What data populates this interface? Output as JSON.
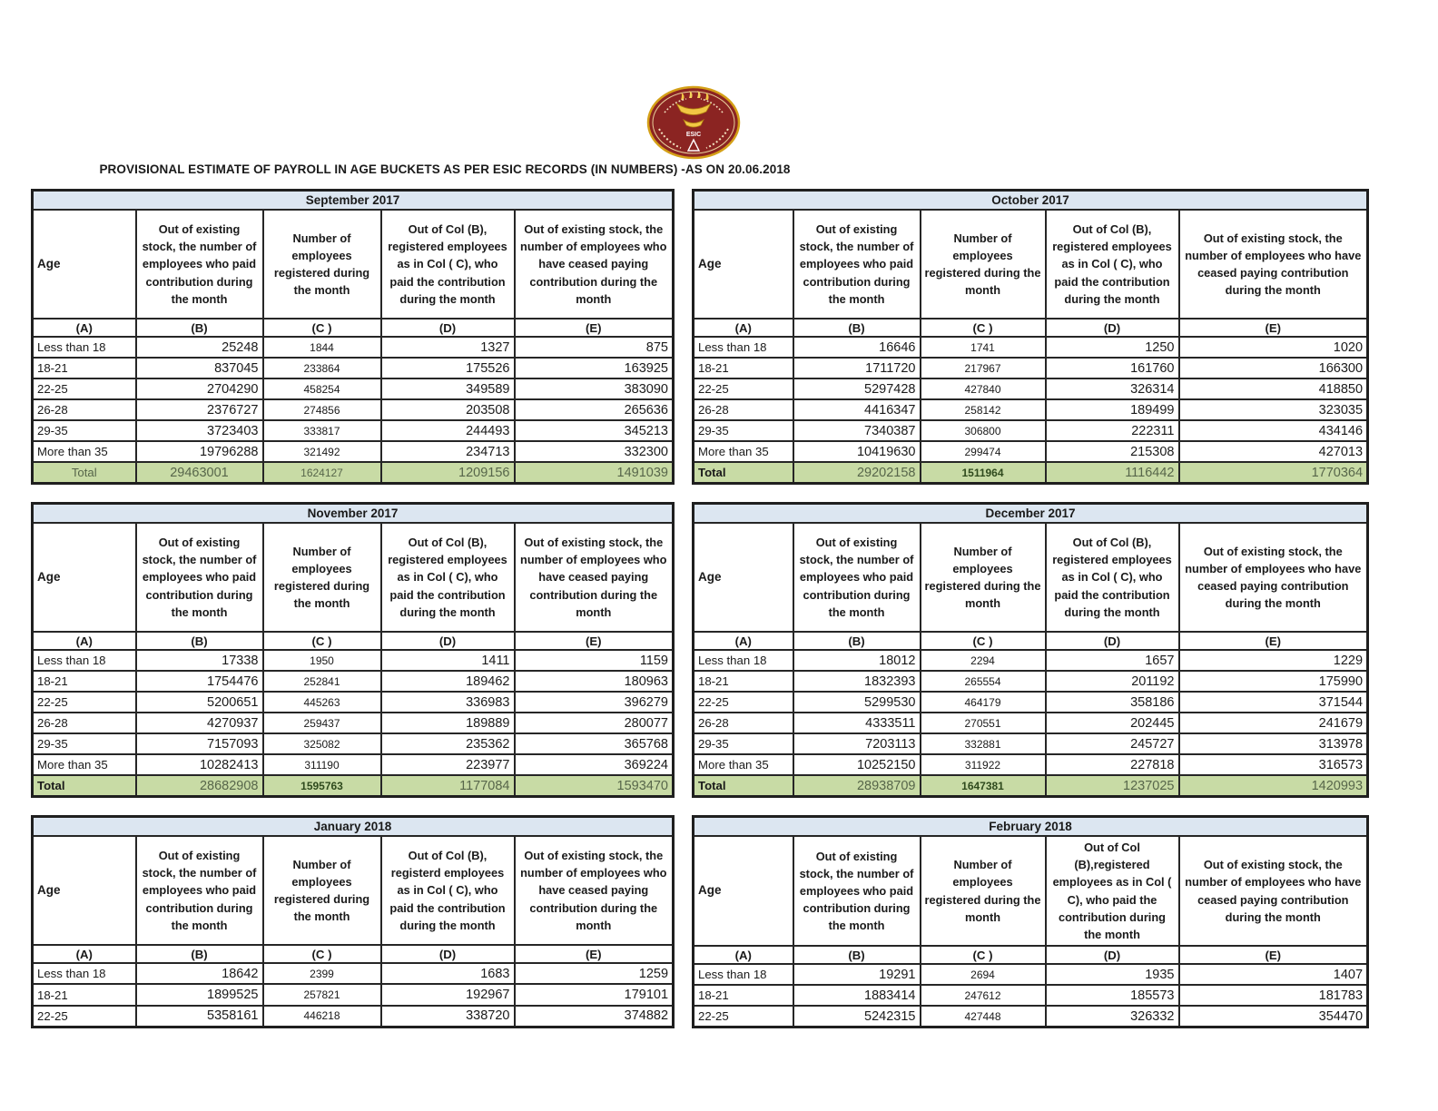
{
  "page": {
    "title": "PROVISIONAL ESTIMATE OF PAYROLL IN AGE BUCKETS AS PER ESIC RECORDS (IN NUMBERS) -AS ON 20.06.2018",
    "logo": "esic-emblem"
  },
  "colors": {
    "month_header_bg": "#dce6f1",
    "total_row_bg": "#c8dba5",
    "emblem_maroon": "#8b2422",
    "emblem_gold": "#d4a017"
  },
  "letters": [
    "(A)",
    "(B)",
    "(C )",
    "(D)",
    "(E)"
  ],
  "tables": [
    {
      "month": "September 2017",
      "headers": {
        "age": "Age",
        "b": "Out of existing stock, the number of employees who paid contribution during the month",
        "c": "Number of employees registered during the month",
        "d": "Out of Col (B), registered employees as in Col ( C), who paid the contribution during the month",
        "e": "Out of existing stock, the number of  employees who have ceased paying contribution during the month"
      },
      "rows": [
        [
          "Less than 18",
          "25248",
          "1844",
          "1327",
          "875"
        ],
        [
          "18-21",
          "837045",
          "233864",
          "175526",
          "163925"
        ],
        [
          "22-25",
          "2704290",
          "458254",
          "349589",
          "383090"
        ],
        [
          "26-28",
          "2376727",
          "274856",
          "203508",
          "265636"
        ],
        [
          "29-35",
          "3723403",
          "333817",
          "244493",
          "345213"
        ],
        [
          "More than 35",
          "19796288",
          "321492",
          "234713",
          "332300"
        ]
      ],
      "total": [
        "Total",
        "29463001",
        "1624127",
        "1209156",
        "1491039"
      ]
    },
    {
      "month": "October 2017",
      "headers": {
        "age": "Age",
        "b": "Out of existing stock, the number of employees who paid contribution during the month",
        "c": "Number of employees registered during the month",
        "d": "Out of Col (B), registered employees as in Col ( C), who paid the contribution during the month",
        "e": "Out of existing stock, the number of  employees  who have ceased paying contribution during the month"
      },
      "rows": [
        [
          "Less than 18",
          "16646",
          "1741",
          "1250",
          "1020"
        ],
        [
          "18-21",
          "1711720",
          "217967",
          "161760",
          "166300"
        ],
        [
          "22-25",
          "5297428",
          "427840",
          "326314",
          "418850"
        ],
        [
          "26-28",
          "4416347",
          "258142",
          "189499",
          "323035"
        ],
        [
          "29-35",
          "7340387",
          "306800",
          "222311",
          "434146"
        ],
        [
          "More than 35",
          "10419630",
          "299474",
          "215308",
          "427013"
        ]
      ],
      "total": [
        "Total",
        "29202158",
        "1511964",
        "1116442",
        "1770364"
      ]
    },
    {
      "month": "November 2017",
      "headers": {
        "age": "Age",
        "b": "Out of existing stock, the number of employees who paid contribution during the month",
        "c": "Number of employees registered during the month",
        "d": "Out of Col (B), registered employees as in Col ( C), who paid the contribution during the month",
        "e": "Out of existing stock, the number of  employees who have ceased paying contribution during the month"
      },
      "rows": [
        [
          "Less than 18",
          "17338",
          "1950",
          "1411",
          "1159"
        ],
        [
          "18-21",
          "1754476",
          "252841",
          "189462",
          "180963"
        ],
        [
          "22-25",
          "5200651",
          "445263",
          "336983",
          "396279"
        ],
        [
          "26-28",
          "4270937",
          "259437",
          "189889",
          "280077"
        ],
        [
          "29-35",
          "7157093",
          "325082",
          "235362",
          "365768"
        ],
        [
          "More than 35",
          "10282413",
          "311190",
          "223977",
          "369224"
        ]
      ],
      "total": [
        "Total",
        "28682908",
        "1595763",
        "1177084",
        "1593470"
      ]
    },
    {
      "month": "December 2017",
      "headers": {
        "age": "Age",
        "b": "Out of existing stock, the number of employees who paid contribution during the month",
        "c": "Number of employees registered during the month",
        "d": "Out of Col (B), registered employees as in Col ( C), who paid the contribution during the month",
        "e": "Out of existing stock, the number of  employees  who have ceased paying contribution during the month"
      },
      "rows": [
        [
          "Less than 18",
          "18012",
          "2294",
          "1657",
          "1229"
        ],
        [
          "18-21",
          "1832393",
          "265554",
          "201192",
          "175990"
        ],
        [
          "22-25",
          "5299530",
          "464179",
          "358186",
          "371544"
        ],
        [
          "26-28",
          "4333511",
          "270551",
          "202445",
          "241679"
        ],
        [
          "29-35",
          "7203113",
          "332881",
          "245727",
          "313978"
        ],
        [
          "More than 35",
          "10252150",
          "311922",
          "227818",
          "316573"
        ]
      ],
      "total": [
        "Total",
        "28938709",
        "1647381",
        "1237025",
        "1420993"
      ]
    },
    {
      "month": "January 2018",
      "headers": {
        "age": "Age",
        "b": "Out of existing stock, the number of employees who paid contribution during the month",
        "c": "Number of employees registered during the month",
        "d": "Out of Col (B), registerd employees as in Col ( C), who paid the contribution during the month",
        "e": "Out of existing stock, the number of  employees who have ceased paying contribution during the month"
      },
      "rows": [
        [
          "Less than 18",
          "18642",
          "2399",
          "1683",
          "1259"
        ],
        [
          "18-21",
          "1899525",
          "257821",
          "192967",
          "179101"
        ],
        [
          "22-25",
          "5358161",
          "446218",
          "338720",
          "374882"
        ]
      ],
      "total": null
    },
    {
      "month": "February 2018",
      "headers": {
        "age": "Age",
        "b": "Out of existing stock, the number of employees who paid contribution during the month",
        "c": "Number of employees registered during the month",
        "d": "Out of Col (B),registered employees as in Col ( C), who paid the contribution during the month",
        "e": "Out of existing stock, the number of  employees  who have ceased paying contribution during the month"
      },
      "rows": [
        [
          "Less than 18",
          "19291",
          "2694",
          "1935",
          "1407"
        ],
        [
          "18-21",
          "1883414",
          "247612",
          "185573",
          "181783"
        ],
        [
          "22-25",
          "5242315",
          "427448",
          "326332",
          "354470"
        ]
      ],
      "total": null
    }
  ]
}
